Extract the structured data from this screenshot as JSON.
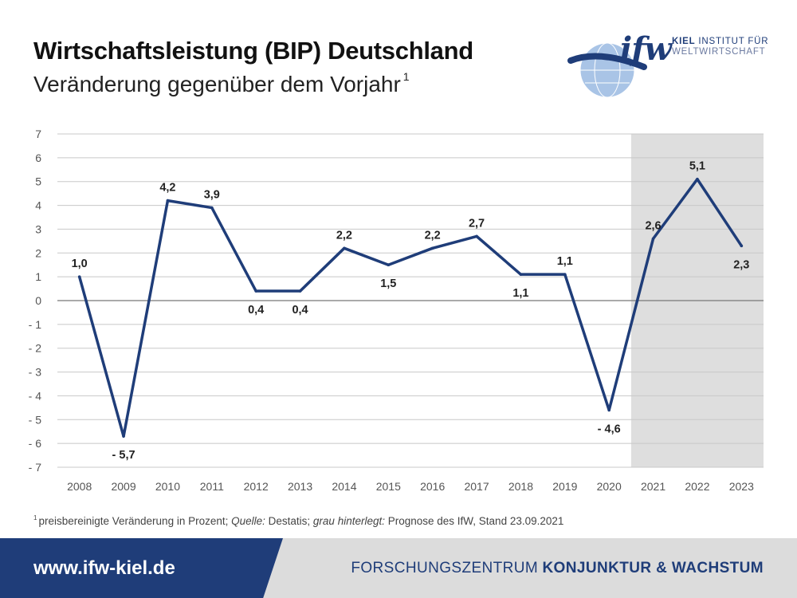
{
  "header": {
    "title": "Wirtschaftsleistung (BIP) Deutschland",
    "subtitle": "Veränderung gegenüber dem Vorjahr",
    "subtitle_footnote_mark": "1"
  },
  "logo": {
    "ifw": "ifw",
    "line1_bold": "KIEL",
    "line1_rest": "INSTITUT FÜR",
    "line2": "WELTWIRTSCHAFT"
  },
  "chart_data": {
    "type": "line",
    "x": [
      "2008",
      "2009",
      "2010",
      "2011",
      "2012",
      "2013",
      "2014",
      "2015",
      "2016",
      "2017",
      "2018",
      "2019",
      "2020",
      "2021",
      "2022",
      "2023"
    ],
    "values": [
      1.0,
      -5.7,
      4.2,
      3.9,
      0.4,
      0.4,
      2.2,
      1.5,
      2.2,
      2.7,
      1.1,
      1.1,
      -4.6,
      2.6,
      5.1,
      2.3
    ],
    "data_labels": [
      "1,0",
      "- 5,7",
      "4,2",
      "3,9",
      "0,4",
      "0,4",
      "2,2",
      "1,5",
      "2,2",
      "2,7",
      "1,1",
      "1,1",
      "- 4,6",
      "2,6",
      "5,1",
      "2,3"
    ],
    "ylim": [
      -7,
      7
    ],
    "yticks": [
      7,
      6,
      5,
      4,
      3,
      2,
      1,
      0,
      -1,
      -2,
      -3,
      -4,
      -5,
      -6,
      -7
    ],
    "ytick_labels": [
      "7",
      "6",
      "5",
      "4",
      "3",
      "2",
      "1",
      "0",
      "- 1",
      "- 2",
      "- 3",
      "- 4",
      "- 5",
      "- 6",
      "- 7"
    ],
    "forecast_shaded_from": "2021",
    "grid": true,
    "line_color": "#1f3d79",
    "shade_color": "#dedede"
  },
  "footnote": {
    "mark": "1",
    "text1": "preisbereinigte Veränderung in Prozent; ",
    "source_label": "Quelle:",
    "source": " Destatis; ",
    "shade_label": "grau hinterlegt:",
    "shade_text": " Prognose des IfW, Stand 23.09.2021"
  },
  "footer": {
    "url": "www.ifw-kiel.de",
    "center_regular": "FORSCHUNGSZENTRUM",
    "center_bold": "KONJUNKTUR & WACHSTUM"
  },
  "colors": {
    "brand_blue": "#1f3d79",
    "footer_gray": "#dcdcdc"
  }
}
